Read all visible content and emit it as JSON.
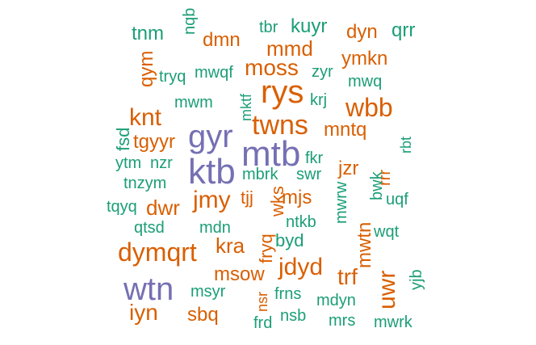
{
  "colors": {
    "teal": "#1b9e77",
    "orange": "#d95f02",
    "purple": "#7570b3"
  },
  "words": [
    {
      "text": "tnm",
      "color": "teal"
    },
    {
      "text": "nqb",
      "color": "teal"
    },
    {
      "text": "dmn",
      "color": "orange"
    },
    {
      "text": "tbr",
      "color": "teal"
    },
    {
      "text": "kuyr",
      "color": "teal"
    },
    {
      "text": "dyn",
      "color": "orange"
    },
    {
      "text": "qrr",
      "color": "teal"
    },
    {
      "text": "mmd",
      "color": "orange"
    },
    {
      "text": "qym",
      "color": "orange"
    },
    {
      "text": "ymkn",
      "color": "orange"
    },
    {
      "text": "tryq",
      "color": "teal"
    },
    {
      "text": "mwqf",
      "color": "teal"
    },
    {
      "text": "moss",
      "color": "orange"
    },
    {
      "text": "zyr",
      "color": "teal"
    },
    {
      "text": "mwq",
      "color": "teal"
    },
    {
      "text": "rys",
      "color": "orange"
    },
    {
      "text": "mktf",
      "color": "teal"
    },
    {
      "text": "krj",
      "color": "teal"
    },
    {
      "text": "wbb",
      "color": "orange"
    },
    {
      "text": "mwm",
      "color": "teal"
    },
    {
      "text": "knt",
      "color": "orange"
    },
    {
      "text": "fsd",
      "color": "teal"
    },
    {
      "text": "twns",
      "color": "orange"
    },
    {
      "text": "mntq",
      "color": "orange"
    },
    {
      "text": "gyr",
      "color": "purple"
    },
    {
      "text": "tgyyr",
      "color": "orange"
    },
    {
      "text": "rbt",
      "color": "teal"
    },
    {
      "text": "mtb",
      "color": "purple"
    },
    {
      "text": "fkr",
      "color": "teal"
    },
    {
      "text": "ytm",
      "color": "teal"
    },
    {
      "text": "nzr",
      "color": "teal"
    },
    {
      "text": "jzr",
      "color": "orange"
    },
    {
      "text": "ktb",
      "color": "purple"
    },
    {
      "text": "mbrk",
      "color": "teal"
    },
    {
      "text": "swr",
      "color": "teal"
    },
    {
      "text": "rrr",
      "color": "orange"
    },
    {
      "text": "tnzym",
      "color": "teal"
    },
    {
      "text": "bwk",
      "color": "teal"
    },
    {
      "text": "tqyq",
      "color": "teal"
    },
    {
      "text": "jmy",
      "color": "orange"
    },
    {
      "text": "tjj",
      "color": "orange"
    },
    {
      "text": "mjs",
      "color": "orange"
    },
    {
      "text": "uqf",
      "color": "teal"
    },
    {
      "text": "dwr",
      "color": "orange"
    },
    {
      "text": "wks",
      "color": "orange"
    },
    {
      "text": "mwrw",
      "color": "teal"
    },
    {
      "text": "ntkb",
      "color": "teal"
    },
    {
      "text": "qtsd",
      "color": "teal"
    },
    {
      "text": "mdn",
      "color": "teal"
    },
    {
      "text": "mwtn",
      "color": "orange"
    },
    {
      "text": "wqt",
      "color": "teal"
    },
    {
      "text": "fryq",
      "color": "orange"
    },
    {
      "text": "byd",
      "color": "teal"
    },
    {
      "text": "dymqrt",
      "color": "orange"
    },
    {
      "text": "kra",
      "color": "orange"
    },
    {
      "text": "jdyd",
      "color": "orange"
    },
    {
      "text": "msow",
      "color": "orange"
    },
    {
      "text": "trf",
      "color": "orange"
    },
    {
      "text": "uwr",
      "color": "orange"
    },
    {
      "text": "wtn",
      "color": "purple"
    },
    {
      "text": "msyr",
      "color": "teal"
    },
    {
      "text": "yjb",
      "color": "teal"
    },
    {
      "text": "nsr",
      "color": "orange"
    },
    {
      "text": "frns",
      "color": "teal"
    },
    {
      "text": "mdyn",
      "color": "teal"
    },
    {
      "text": "iyn",
      "color": "orange"
    },
    {
      "text": "sbq",
      "color": "orange"
    },
    {
      "text": "nsb",
      "color": "teal"
    },
    {
      "text": "mrs",
      "color": "teal"
    },
    {
      "text": "frd",
      "color": "teal"
    },
    {
      "text": "mwrk",
      "color": "teal"
    }
  ]
}
